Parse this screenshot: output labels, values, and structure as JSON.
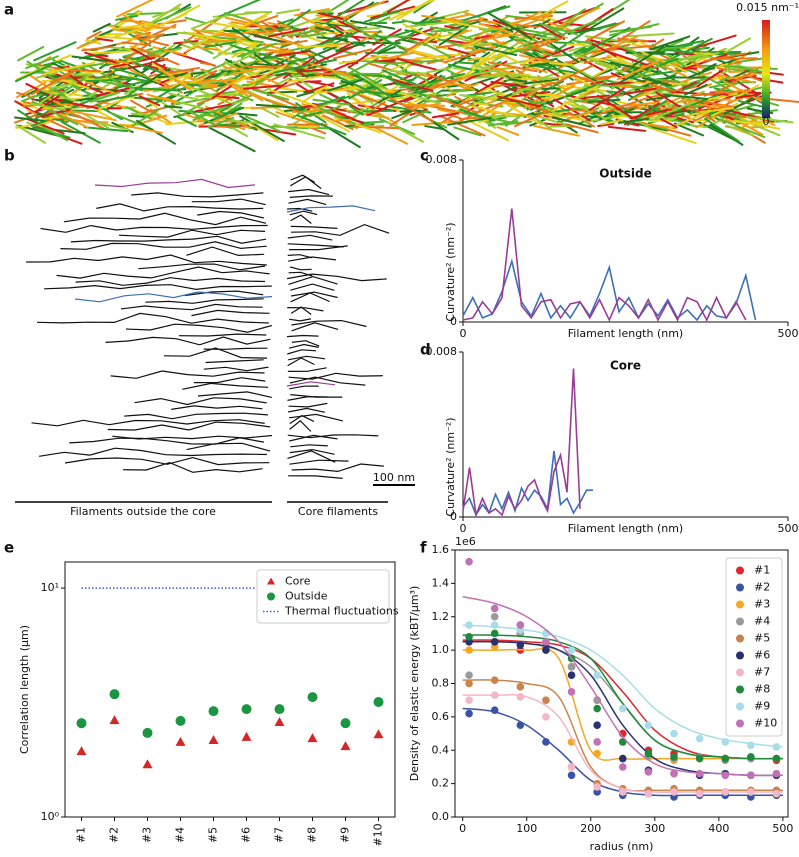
{
  "panel_labels": [
    "a",
    "b",
    "c",
    "d",
    "e",
    "f"
  ],
  "panel_a": {
    "colorbar_max": "0.015 nm⁻¹",
    "colorbar_min": "0"
  },
  "panel_b": {
    "scale_bar": "100 nm",
    "outside_label": "Filaments outside the core",
    "core_label": "Core filaments"
  },
  "chart_data": [
    {
      "type": "line",
      "title": "Outside",
      "x_label": "Filament length (nm)",
      "y_label": "Curvature² (nm⁻²)",
      "x": [
        0,
        15,
        30,
        45,
        60,
        75,
        90,
        105,
        120,
        135,
        150,
        165,
        180,
        195,
        210,
        225,
        240,
        255,
        270,
        285,
        300,
        315,
        330,
        345,
        360,
        375,
        390,
        405,
        420,
        435,
        450
      ],
      "series": [
        {
          "color": "#3c6fb6",
          "values": [
            0.0003,
            0.0012,
            0.0002,
            0.0004,
            0.0015,
            0.003,
            0.001,
            0.0003,
            0.0014,
            0.0002,
            0.0008,
            0.0002,
            0.001,
            0.0003,
            0.0014,
            0.0027,
            0.0005,
            0.0012,
            0.0002,
            0.0009,
            0.0003,
            0.0011,
            0.0002,
            0.0006,
            0.0001,
            0.0008,
            0.0003,
            0.0002,
            0.0009,
            0.0023,
            0.0001
          ]
        },
        {
          "color": "#993d95",
          "values": [
            0.0001,
            0.0002,
            0.001,
            0.0004,
            0.0012,
            0.0056,
            0.0008,
            0.0002,
            0.001,
            0.0011,
            0.0002,
            0.0009,
            0.001,
            0.0002,
            0.0011,
            0.0001,
            0.0012,
            0.0008,
            0.0002,
            0.0011,
            0.0001,
            0.001,
            0.0001,
            0.0012,
            0.001,
            0.0001,
            0.0012,
            0.0002,
            0.001,
            0.0001,
            null
          ]
        }
      ],
      "xlim": [
        0,
        500
      ],
      "ylim": [
        0,
        0.008
      ],
      "xticks": [
        0,
        500
      ],
      "yticks": [
        0,
        0.008
      ]
    },
    {
      "type": "line",
      "title": "Core",
      "x_label": "Filament length (nm)",
      "y_label": "Curvature² (nm⁻²)",
      "x": [
        0,
        10,
        20,
        30,
        40,
        50,
        60,
        70,
        80,
        90,
        100,
        110,
        120,
        130,
        140,
        150,
        160,
        170,
        180,
        190,
        200
      ],
      "series": [
        {
          "color": "#3c6fb6",
          "values": [
            0.0005,
            0.0009,
            0.0001,
            0.0006,
            0.0002,
            0.0011,
            0.0004,
            0.0012,
            0.0003,
            0.0014,
            0.0008,
            0.0013,
            0.001,
            0.0004,
            0.0032,
            0.0006,
            0.0009,
            0.0002,
            0.0007,
            0.0013,
            0.0013
          ]
        },
        {
          "color": "#993d95",
          "values": [
            0.0003,
            0.0024,
            0.0001,
            0.0009,
            0.0002,
            0.0004,
            0.0001,
            0.001,
            0.0004,
            0.0008,
            0.0015,
            0.0018,
            0.0009,
            0.0003,
            0.0022,
            0.003,
            0.0012,
            0.0072,
            0.0004,
            null,
            null
          ]
        }
      ],
      "xlim": [
        0,
        500
      ],
      "ylim": [
        0,
        0.008
      ],
      "xticks": [
        0,
        500
      ],
      "yticks": [
        0,
        0.008
      ]
    },
    {
      "type": "scatter",
      "y_label": "Correlation length (μm)",
      "log_y": true,
      "legend": "upper right",
      "categories": [
        "#1",
        "#2",
        "#3",
        "#4",
        "#5",
        "#6",
        "#7",
        "#8",
        "#9",
        "#10"
      ],
      "series": [
        {
          "name": "Core",
          "color": "#d62728",
          "marker": "triangle",
          "values": [
            1.94,
            2.65,
            1.7,
            2.13,
            2.17,
            2.24,
            2.6,
            2.21,
            2.04,
            2.3
          ]
        },
        {
          "name": "Outside",
          "color": "#1a9641",
          "marker": "circle",
          "values": [
            2.57,
            3.44,
            2.33,
            2.63,
            2.9,
            2.96,
            2.96,
            3.34,
            2.57,
            3.18
          ]
        },
        {
          "name": "Thermal fluctuations",
          "color": "#3a5fcd",
          "marker": "dotted-line",
          "values": [
            10,
            10,
            10,
            10,
            10,
            10,
            10,
            10,
            10,
            10
          ]
        }
      ],
      "ylim": [
        1,
        13
      ],
      "yticks": [
        {
          "value": 1,
          "label": "10⁰"
        },
        {
          "value": 10,
          "label": "10¹"
        }
      ]
    },
    {
      "type": "scatter",
      "x_label": "radius (nm)",
      "y_label": "Density of elastic energy (kBT/μm³)",
      "offset_text": "1e6",
      "legend": "upper right",
      "x": [
        10,
        50,
        90,
        130,
        170,
        210,
        250,
        290,
        330,
        370,
        410,
        450,
        490
      ],
      "fit_x": [
        0,
        50,
        100,
        150,
        200,
        250,
        300,
        350,
        400,
        450,
        500
      ],
      "series": [
        {
          "name": "#1",
          "color": "#e0262a",
          "values": [
            1.05,
            1.05,
            1.0,
            1.02,
            0.9,
            0.7,
            0.5,
            0.4,
            0.38,
            0.36,
            0.35,
            0.35,
            0.34
          ],
          "fit": [
            1.06,
            1.06,
            1.05,
            1.03,
            0.95,
            0.75,
            0.52,
            0.4,
            0.36,
            0.35,
            0.35
          ]
        },
        {
          "name": "#2",
          "color": "#3a53a4",
          "values": [
            0.62,
            0.64,
            0.55,
            0.45,
            0.25,
            0.15,
            0.13,
            0.14,
            0.12,
            0.13,
            0.13,
            0.12,
            0.13
          ],
          "fit": [
            0.65,
            0.63,
            0.55,
            0.4,
            0.22,
            0.15,
            0.13,
            0.13,
            0.13,
            0.13,
            0.13
          ]
        },
        {
          "name": "#3",
          "color": "#f5a623",
          "values": [
            1.0,
            1.02,
            1.1,
            1.05,
            0.45,
            0.38,
            0.35,
            0.36,
            0.34,
            0.35,
            0.35,
            0.36,
            0.35
          ],
          "fit": [
            1.0,
            1.0,
            1.0,
            0.95,
            0.4,
            0.35,
            0.35,
            0.35,
            0.35,
            0.35,
            0.35
          ]
        },
        {
          "name": "#4",
          "color": "#9a9a9a",
          "values": [
            0.85,
            1.2,
            1.1,
            1.0,
            0.9,
            0.7,
            0.45,
            0.37,
            0.35,
            0.36,
            0.34,
            0.35,
            0.35
          ],
          "fit": [
            1.05,
            1.05,
            1.04,
            1.0,
            0.9,
            0.68,
            0.46,
            0.38,
            0.36,
            0.35,
            0.35
          ]
        },
        {
          "name": "#5",
          "color": "#c8844a",
          "values": [
            0.8,
            0.82,
            0.78,
            0.7,
            0.3,
            0.2,
            0.17,
            0.16,
            0.17,
            0.16,
            0.15,
            0.16,
            0.16
          ],
          "fit": [
            0.82,
            0.82,
            0.8,
            0.72,
            0.3,
            0.17,
            0.16,
            0.16,
            0.16,
            0.16,
            0.16
          ]
        },
        {
          "name": "#6",
          "color": "#283272",
          "values": [
            1.05,
            1.05,
            1.03,
            1.0,
            0.85,
            0.55,
            0.35,
            0.28,
            0.26,
            0.25,
            0.26,
            0.25,
            0.25
          ],
          "fit": [
            1.05,
            1.05,
            1.04,
            1.0,
            0.85,
            0.55,
            0.35,
            0.28,
            0.26,
            0.25,
            0.25
          ]
        },
        {
          "name": "#7",
          "color": "#f4b6c6",
          "values": [
            0.7,
            0.73,
            0.72,
            0.6,
            0.3,
            0.18,
            0.15,
            0.14,
            0.15,
            0.14,
            0.15,
            0.15,
            0.14
          ],
          "fit": [
            0.73,
            0.73,
            0.72,
            0.6,
            0.28,
            0.17,
            0.15,
            0.15,
            0.15,
            0.15,
            0.15
          ]
        },
        {
          "name": "#8",
          "color": "#1f8a3c",
          "values": [
            1.08,
            1.1,
            1.15,
            1.1,
            0.95,
            0.65,
            0.45,
            0.38,
            0.36,
            0.35,
            0.35,
            0.36,
            0.35
          ],
          "fit": [
            1.09,
            1.09,
            1.08,
            1.05,
            0.95,
            0.68,
            0.46,
            0.38,
            0.36,
            0.35,
            0.35
          ]
        },
        {
          "name": "#9",
          "color": "#a8dce8",
          "values": [
            1.15,
            1.15,
            1.12,
            1.1,
            1.0,
            0.85,
            0.65,
            0.55,
            0.5,
            0.47,
            0.45,
            0.43,
            0.42
          ],
          "fit": [
            1.15,
            1.14,
            1.12,
            1.08,
            1.0,
            0.85,
            0.65,
            0.53,
            0.47,
            0.44,
            0.42
          ]
        },
        {
          "name": "#10",
          "color": "#c271b4",
          "values": [
            1.53,
            1.25,
            1.15,
            1.05,
            0.75,
            0.45,
            0.3,
            0.27,
            0.26,
            0.26,
            0.25,
            0.25,
            0.26
          ],
          "fit": [
            1.32,
            1.28,
            1.2,
            1.05,
            0.78,
            0.48,
            0.32,
            0.27,
            0.26,
            0.25,
            0.25
          ]
        }
      ],
      "xlim": [
        -12,
        508
      ],
      "ylim": [
        0,
        1.6
      ],
      "xticks": [
        0,
        100,
        200,
        300,
        400,
        500
      ],
      "yticks": [
        {
          "value": 0,
          "label": "0.0"
        },
        {
          "value": 0.2,
          "label": "0.2"
        },
        {
          "value": 0.4,
          "label": "0.4"
        },
        {
          "value": 0.6,
          "label": "0.6"
        },
        {
          "value": 0.8,
          "label": "0.8"
        },
        {
          "value": 1,
          "label": "1.0"
        },
        {
          "value": 1.2,
          "label": "1.2"
        },
        {
          "value": 1.4,
          "label": "1.4"
        },
        {
          "value": 1.6,
          "label": "1.6"
        }
      ]
    }
  ]
}
